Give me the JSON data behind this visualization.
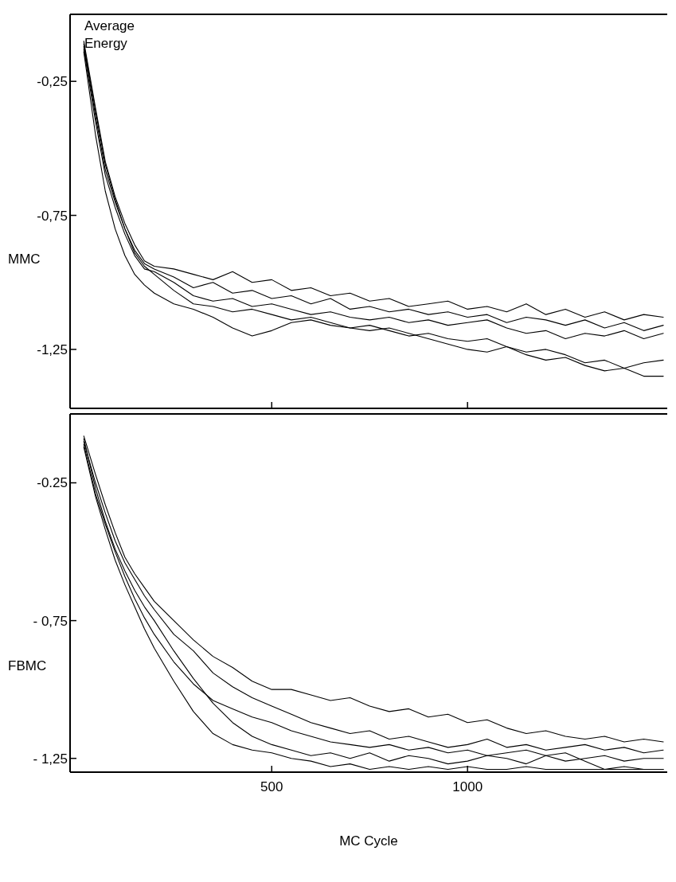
{
  "chart_data": [
    {
      "type": "line",
      "ylabel": "MMC",
      "annotations": [
        "Average Energy"
      ],
      "tick_labels": "y",
      "xlim": [
        -15,
        1510
      ],
      "ylim": [
        -1.47,
        0
      ],
      "xticks": [
        {
          "value": 500,
          "label": null
        },
        {
          "value": 1000,
          "label": null
        }
      ],
      "yticks": [
        {
          "value": -0.25,
          "label": "-0,25"
        },
        {
          "value": -0.75,
          "label": "-0,75"
        },
        {
          "value": -1.25,
          "label": "-1,25"
        }
      ],
      "x": [
        20,
        50,
        75,
        100,
        125,
        150,
        175,
        200,
        250,
        300,
        350,
        400,
        450,
        500,
        550,
        600,
        650,
        700,
        750,
        800,
        850,
        900,
        950,
        1000,
        1050,
        1100,
        1150,
        1200,
        1250,
        1300,
        1350,
        1400,
        1450,
        1500
      ],
      "series": [
        {
          "color": "#000000",
          "values": [
            -0.1,
            -0.35,
            -0.55,
            -0.68,
            -0.78,
            -0.86,
            -0.92,
            -0.94,
            -0.95,
            -0.97,
            -0.99,
            -0.96,
            -1.0,
            -0.99,
            -1.03,
            -1.02,
            -1.05,
            -1.04,
            -1.07,
            -1.06,
            -1.09,
            -1.08,
            -1.07,
            -1.1,
            -1.09,
            -1.11,
            -1.08,
            -1.12,
            -1.1,
            -1.13,
            -1.11,
            -1.14,
            -1.12,
            -1.13
          ]
        },
        {
          "color": "#000000",
          "values": [
            -0.12,
            -0.38,
            -0.58,
            -0.7,
            -0.8,
            -0.88,
            -0.93,
            -0.95,
            -0.98,
            -1.02,
            -1.0,
            -1.04,
            -1.03,
            -1.06,
            -1.05,
            -1.08,
            -1.06,
            -1.1,
            -1.09,
            -1.11,
            -1.1,
            -1.12,
            -1.11,
            -1.13,
            -1.12,
            -1.15,
            -1.13,
            -1.14,
            -1.16,
            -1.14,
            -1.17,
            -1.15,
            -1.18,
            -1.16
          ]
        },
        {
          "color": "#000000",
          "values": [
            -0.13,
            -0.4,
            -0.6,
            -0.72,
            -0.82,
            -0.9,
            -0.95,
            -0.96,
            -1.0,
            -1.05,
            -1.07,
            -1.06,
            -1.09,
            -1.08,
            -1.1,
            -1.12,
            -1.11,
            -1.13,
            -1.14,
            -1.13,
            -1.15,
            -1.14,
            -1.16,
            -1.15,
            -1.14,
            -1.17,
            -1.19,
            -1.18,
            -1.21,
            -1.19,
            -1.2,
            -1.18,
            -1.21,
            -1.19
          ]
        },
        {
          "color": "#000000",
          "values": [
            -0.11,
            -0.36,
            -0.56,
            -0.69,
            -0.8,
            -0.89,
            -0.94,
            -0.97,
            -1.03,
            -1.08,
            -1.09,
            -1.11,
            -1.1,
            -1.12,
            -1.14,
            -1.13,
            -1.15,
            -1.17,
            -1.16,
            -1.18,
            -1.2,
            -1.19,
            -1.21,
            -1.22,
            -1.21,
            -1.24,
            -1.26,
            -1.25,
            -1.27,
            -1.3,
            -1.29,
            -1.32,
            -1.3,
            -1.29
          ]
        },
        {
          "color": "#000000",
          "values": [
            -0.14,
            -0.45,
            -0.66,
            -0.8,
            -0.9,
            -0.97,
            -1.01,
            -1.04,
            -1.08,
            -1.1,
            -1.13,
            -1.17,
            -1.2,
            -1.18,
            -1.15,
            -1.14,
            -1.16,
            -1.17,
            -1.18,
            -1.17,
            -1.19,
            -1.21,
            -1.23,
            -1.25,
            -1.26,
            -1.24,
            -1.27,
            -1.29,
            -1.28,
            -1.31,
            -1.33,
            -1.32,
            -1.35,
            -1.35
          ]
        }
      ]
    },
    {
      "type": "line",
      "ylabel": "FBMC",
      "xlabel": "MC Cycle",
      "xlim": [
        -15,
        1510
      ],
      "ylim": [
        -1.3,
        0
      ],
      "xticks": [
        500,
        1000
      ],
      "yticks": [
        {
          "value": -0.25,
          "label": "-0.25"
        },
        {
          "value": -0.75,
          "label": "- 0,75"
        },
        {
          "value": -1.25,
          "label": "- 1,25"
        }
      ],
      "x": [
        20,
        50,
        75,
        100,
        125,
        150,
        175,
        200,
        250,
        300,
        350,
        400,
        450,
        500,
        550,
        600,
        650,
        700,
        750,
        800,
        850,
        900,
        950,
        1000,
        1050,
        1100,
        1150,
        1200,
        1250,
        1300,
        1350,
        1400,
        1450,
        1500
      ],
      "series": [
        {
          "color": "#000000",
          "values": [
            -0.08,
            -0.22,
            -0.33,
            -0.43,
            -0.52,
            -0.58,
            -0.63,
            -0.68,
            -0.75,
            -0.82,
            -0.88,
            -0.92,
            -0.97,
            -1.0,
            -1.0,
            -1.02,
            -1.04,
            -1.03,
            -1.06,
            -1.08,
            -1.07,
            -1.1,
            -1.09,
            -1.12,
            -1.11,
            -1.14,
            -1.16,
            -1.15,
            -1.17,
            -1.18,
            -1.17,
            -1.19,
            -1.18,
            -1.19
          ]
        },
        {
          "color": "#000000",
          "values": [
            -0.1,
            -0.25,
            -0.36,
            -0.46,
            -0.54,
            -0.6,
            -0.66,
            -0.71,
            -0.8,
            -0.86,
            -0.94,
            -0.99,
            -1.03,
            -1.06,
            -1.09,
            -1.12,
            -1.14,
            -1.16,
            -1.15,
            -1.18,
            -1.17,
            -1.19,
            -1.21,
            -1.2,
            -1.18,
            -1.21,
            -1.2,
            -1.22,
            -1.21,
            -1.2,
            -1.22,
            -1.21,
            -1.23,
            -1.22
          ]
        },
        {
          "color": "#000000",
          "values": [
            -0.09,
            -0.27,
            -0.39,
            -0.49,
            -0.57,
            -0.64,
            -0.7,
            -0.75,
            -0.86,
            -0.96,
            -1.05,
            -1.12,
            -1.17,
            -1.2,
            -1.22,
            -1.24,
            -1.23,
            -1.25,
            -1.23,
            -1.26,
            -1.24,
            -1.25,
            -1.27,
            -1.26,
            -1.24,
            -1.25,
            -1.27,
            -1.24,
            -1.26,
            -1.25,
            -1.24,
            -1.26,
            -1.25,
            -1.25
          ]
        },
        {
          "color": "#000000",
          "values": [
            -0.11,
            -0.29,
            -0.4,
            -0.5,
            -0.59,
            -0.67,
            -0.74,
            -0.8,
            -0.9,
            -0.98,
            -1.04,
            -1.07,
            -1.1,
            -1.12,
            -1.15,
            -1.17,
            -1.19,
            -1.2,
            -1.21,
            -1.2,
            -1.22,
            -1.21,
            -1.23,
            -1.22,
            -1.24,
            -1.23,
            -1.22,
            -1.24,
            -1.23,
            -1.26,
            -1.29,
            -1.28,
            -1.29,
            -1.29
          ]
        },
        {
          "color": "#000000",
          "values": [
            -0.12,
            -0.3,
            -0.42,
            -0.53,
            -0.62,
            -0.7,
            -0.78,
            -0.85,
            -0.97,
            -1.08,
            -1.16,
            -1.2,
            -1.22,
            -1.23,
            -1.25,
            -1.26,
            -1.28,
            -1.27,
            -1.29,
            -1.28,
            -1.29,
            -1.28,
            -1.29,
            -1.28,
            -1.29,
            -1.29,
            -1.28,
            -1.29,
            -1.29,
            -1.29,
            -1.29,
            -1.29,
            -1.29,
            -1.29
          ]
        }
      ]
    }
  ]
}
